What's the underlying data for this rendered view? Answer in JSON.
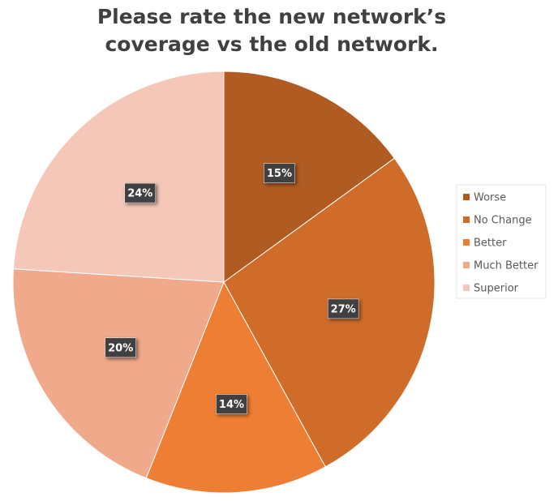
{
  "chart_data": {
    "type": "pie",
    "title": "Please rate the new network’s coverage vs the old network.",
    "categories": [
      "Worse",
      "No Change",
      "Better",
      "Much Better",
      "Superior"
    ],
    "values": [
      15,
      27,
      14,
      20,
      24
    ],
    "value_labels": [
      "15%",
      "27%",
      "14%",
      "20%",
      "24%"
    ],
    "colors": [
      "#b05b22",
      "#d06c2a",
      "#ee7e33",
      "#f0a98a",
      "#f4c7b8"
    ],
    "legend": "right"
  }
}
